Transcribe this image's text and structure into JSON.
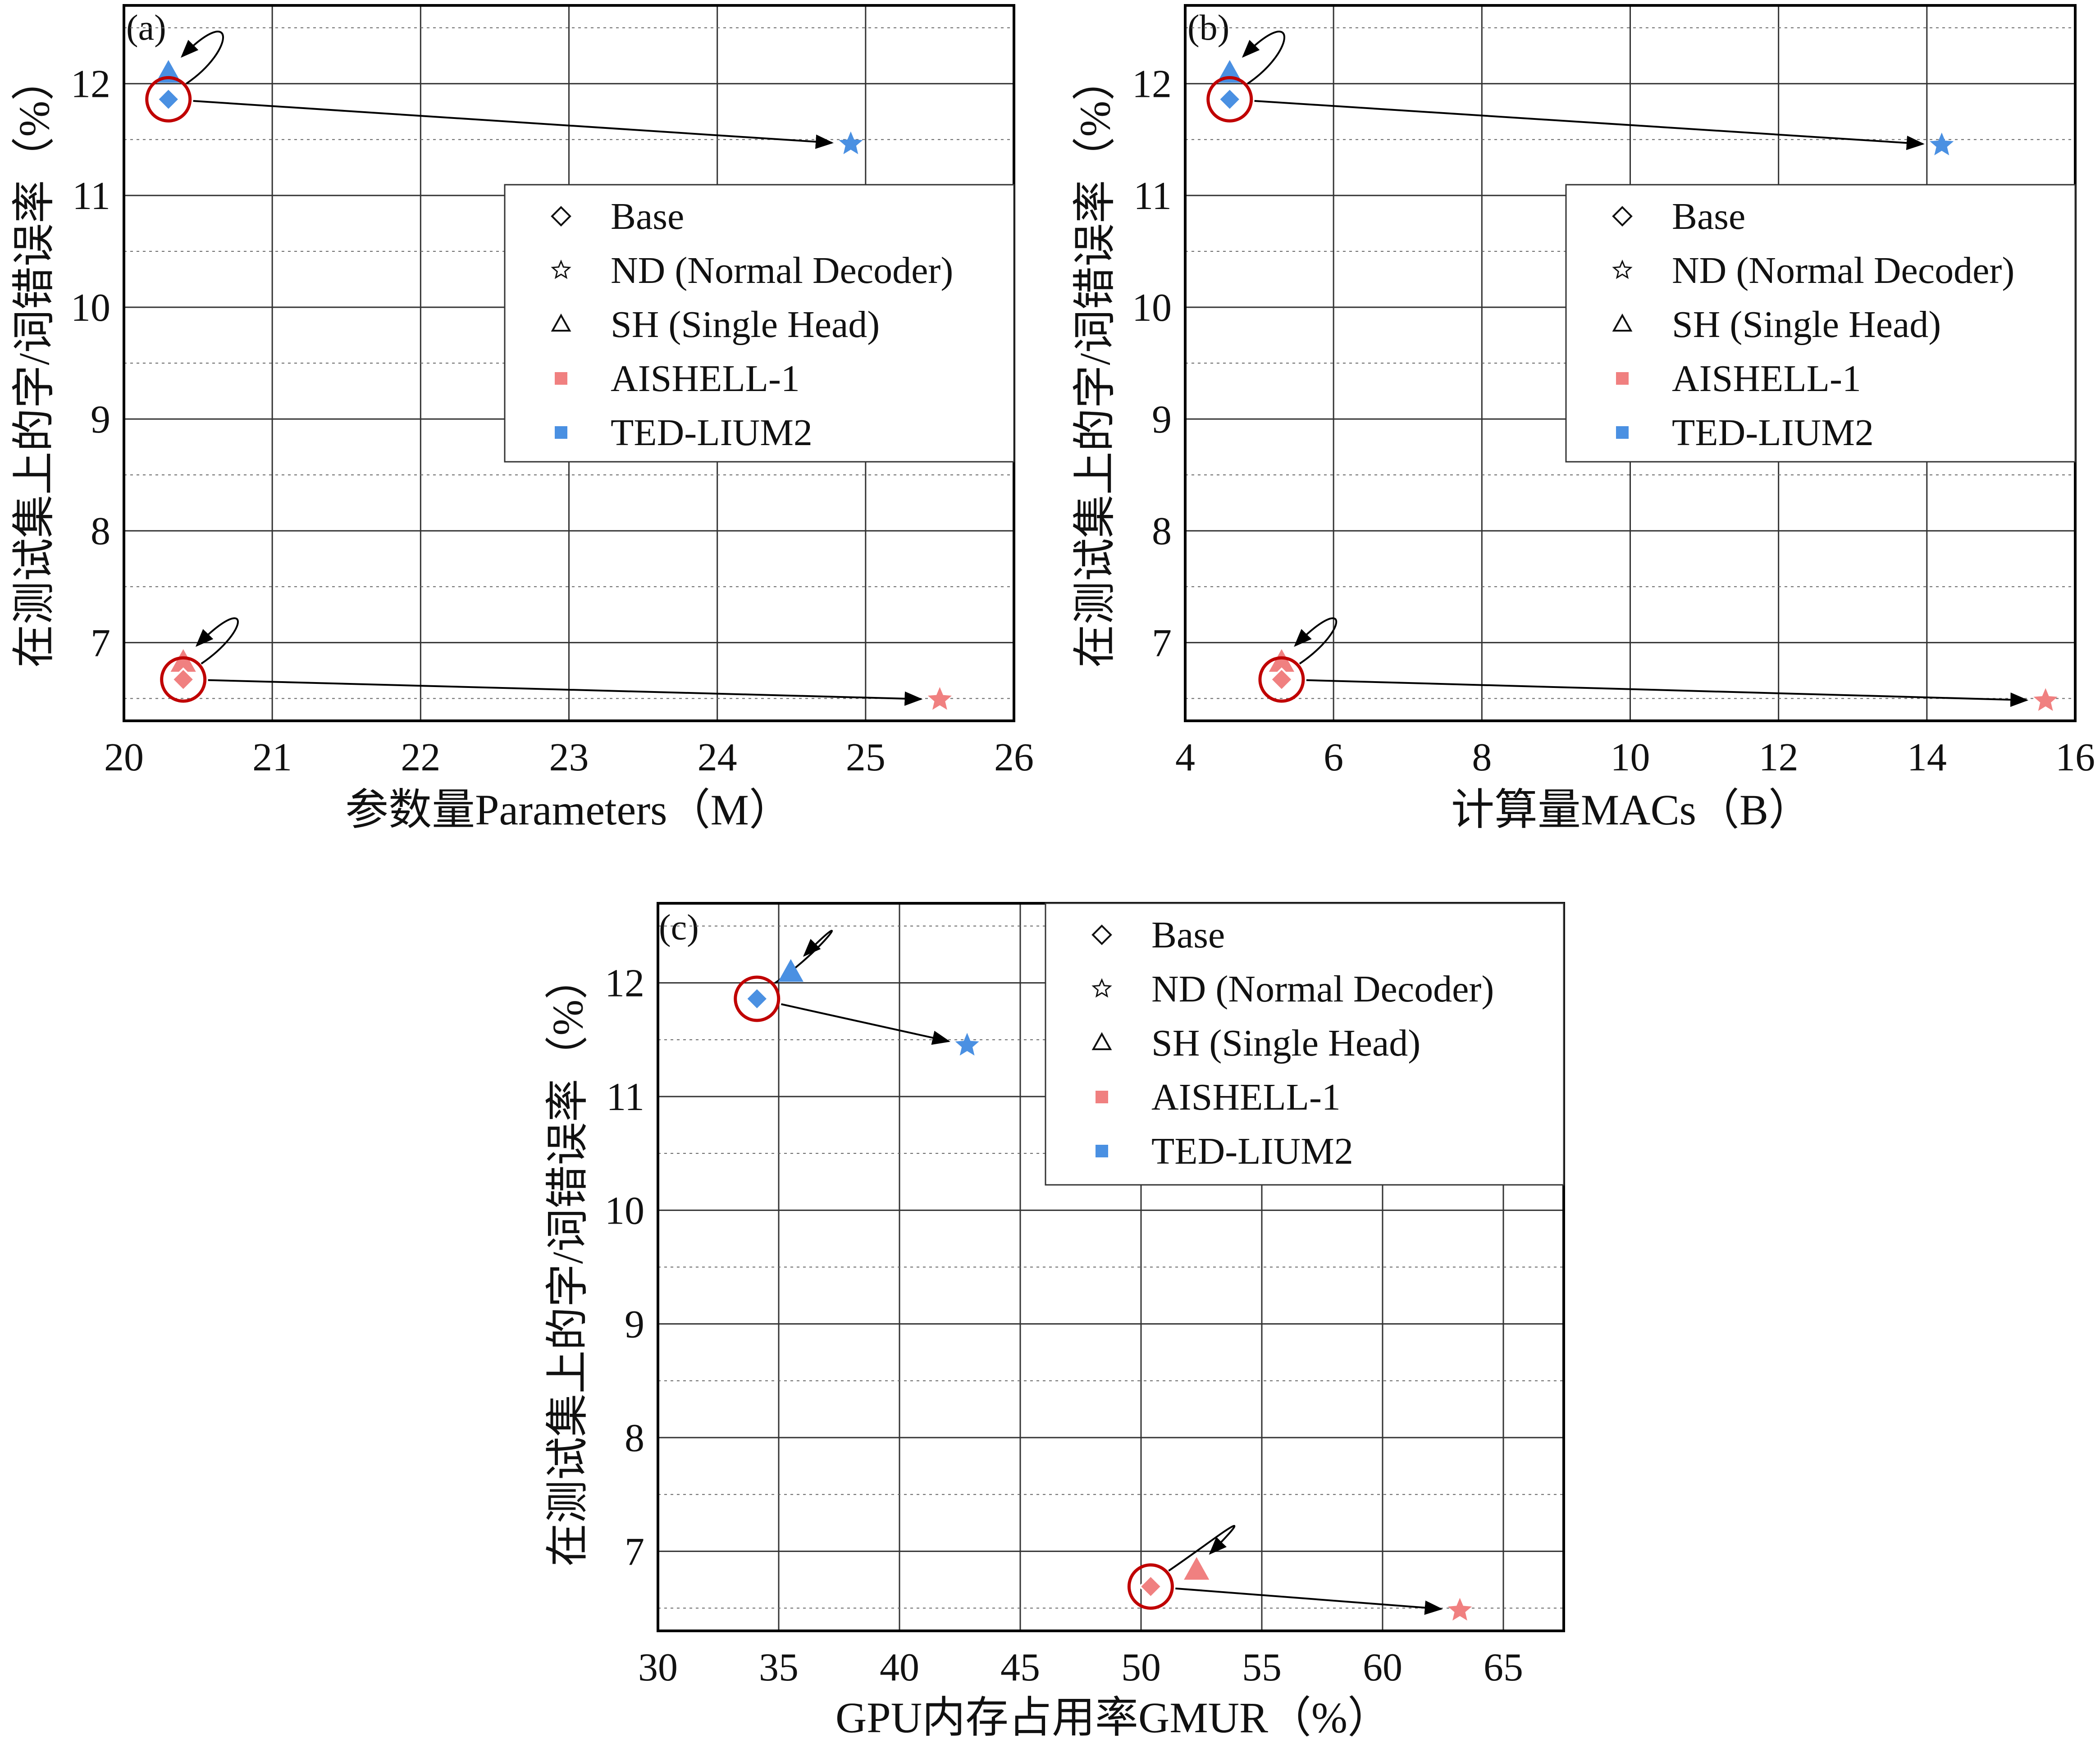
{
  "chart_data": [
    {
      "type": "scatter",
      "panel": "(a)",
      "xlabel": "参数量Parameters（M）",
      "ylabel": "在测试集上的字/词错误率（%）",
      "xlim": [
        20,
        26
      ],
      "ylim": [
        6.3,
        12.7
      ],
      "xticks": [
        20,
        21,
        22,
        23,
        24,
        25,
        26
      ],
      "yticks": [
        7,
        8,
        9,
        10,
        11,
        12
      ],
      "grid": true,
      "legend_position": "center-right",
      "points": [
        {
          "model": "Base",
          "dataset": "AISHELL-1",
          "x": 20.4,
          "y": 6.67
        },
        {
          "model": "ND",
          "dataset": "AISHELL-1",
          "x": 25.5,
          "y": 6.49
        },
        {
          "model": "SH",
          "dataset": "AISHELL-1",
          "x": 20.4,
          "y": 6.82
        },
        {
          "model": "Base",
          "dataset": "TED-LIUM2",
          "x": 20.3,
          "y": 11.86
        },
        {
          "model": "ND",
          "dataset": "TED-LIUM2",
          "x": 24.9,
          "y": 11.46
        },
        {
          "model": "SH",
          "dataset": "TED-LIUM2",
          "x": 20.3,
          "y": 12.09
        }
      ]
    },
    {
      "type": "scatter",
      "panel": "(b)",
      "xlabel": "计算量MACs（B）",
      "ylabel": "在测试集上的字/词错误率（%）",
      "xlim": [
        4,
        16
      ],
      "ylim": [
        6.3,
        12.7
      ],
      "xticks": [
        4,
        6,
        8,
        10,
        12,
        14,
        16
      ],
      "yticks": [
        7,
        8,
        9,
        10,
        11,
        12
      ],
      "grid": true,
      "legend_position": "center-right",
      "points": [
        {
          "model": "Base",
          "dataset": "AISHELL-1",
          "x": 5.3,
          "y": 6.67
        },
        {
          "model": "ND",
          "dataset": "AISHELL-1",
          "x": 15.6,
          "y": 6.48
        },
        {
          "model": "SH",
          "dataset": "AISHELL-1",
          "x": 5.3,
          "y": 6.82
        },
        {
          "model": "Base",
          "dataset": "TED-LIUM2",
          "x": 4.6,
          "y": 11.86
        },
        {
          "model": "ND",
          "dataset": "TED-LIUM2",
          "x": 14.2,
          "y": 11.45
        },
        {
          "model": "SH",
          "dataset": "TED-LIUM2",
          "x": 4.6,
          "y": 12.09
        }
      ]
    },
    {
      "type": "scatter",
      "panel": "(c)",
      "xlabel": "GPU内存占用率GMUR（%）",
      "ylabel": "在测试集上的字/词错误率（%）",
      "xlim": [
        30,
        67.5
      ],
      "ylim": [
        6.3,
        12.7
      ],
      "xticks": [
        30,
        35,
        40,
        45,
        50,
        55,
        60,
        65
      ],
      "yticks": [
        7,
        8,
        9,
        10,
        11,
        12
      ],
      "grid": true,
      "legend_position": "top-right",
      "points": [
        {
          "model": "Base",
          "dataset": "AISHELL-1",
          "x": 50.4,
          "y": 6.69
        },
        {
          "model": "ND",
          "dataset": "AISHELL-1",
          "x": 63.2,
          "y": 6.48
        },
        {
          "model": "SH",
          "dataset": "AISHELL-1",
          "x": 52.3,
          "y": 6.83
        },
        {
          "model": "Base",
          "dataset": "TED-LIUM2",
          "x": 34.1,
          "y": 11.86
        },
        {
          "model": "ND",
          "dataset": "TED-LIUM2",
          "x": 42.8,
          "y": 11.45
        },
        {
          "model": "SH",
          "dataset": "TED-LIUM2",
          "x": 35.5,
          "y": 12.09
        }
      ]
    }
  ],
  "legend": {
    "entries": [
      {
        "label": "Base",
        "marker": "diamond-outline"
      },
      {
        "label": "ND (Normal Decoder)",
        "marker": "star-outline"
      },
      {
        "label": "SH (Single Head)",
        "marker": "triangle-outline"
      },
      {
        "label": "AISHELL-1",
        "marker": "square"
      },
      {
        "label": "TED-LIUM2",
        "marker": "square"
      }
    ]
  },
  "colors": {
    "AISHELL-1": "#f08080",
    "TED-LIUM2": "#4a90e2",
    "base_ring": "#c00000",
    "grid": "#333333",
    "arrow": "#000000"
  }
}
